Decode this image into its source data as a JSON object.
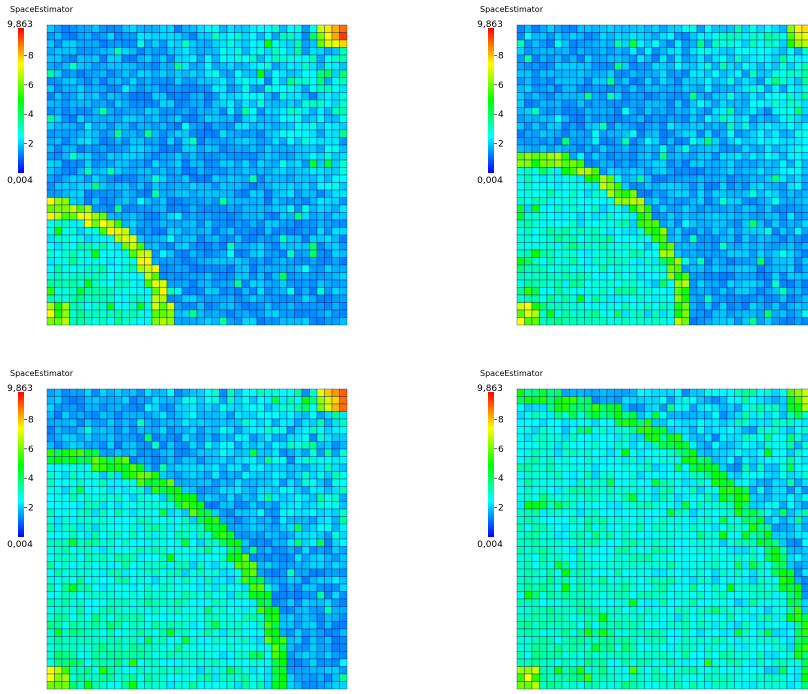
{
  "chart_data": [
    {
      "type": "heatmap",
      "title": "SpaceEstimator",
      "colorbar": {
        "min_label": "0,004",
        "max_label": "9,863",
        "ticks": [
          "2",
          "4",
          "6",
          "8"
        ],
        "min": 0.004,
        "max": 9.863
      },
      "grid_size": 40,
      "front_radius": 0.39,
      "front_value": 6.5,
      "peak": {
        "location": "top-right corner",
        "value": 9.4
      },
      "background_value": 1.2,
      "colors": [
        "#0000ff",
        "#00ffff",
        "#00ff00",
        "#ffff00",
        "#ff0000"
      ]
    },
    {
      "type": "heatmap",
      "title": "SpaceEstimator",
      "colorbar": {
        "min_label": "0,004",
        "max_label": "9,863",
        "ticks": [
          "2",
          "4",
          "6",
          "8"
        ],
        "min": 0.004,
        "max": 9.863
      },
      "grid_size": 40,
      "front_radius": 0.56,
      "front_value": 5.8,
      "peak": {
        "location": "top-right corner",
        "value": 9.0
      },
      "background_value": 1.2,
      "colors": [
        "#0000ff",
        "#00ffff",
        "#00ff00",
        "#ffff00",
        "#ff0000"
      ]
    },
    {
      "type": "heatmap",
      "title": "SpaceEstimator",
      "colorbar": {
        "min_label": "0,004",
        "max_label": "9,863",
        "ticks": [
          "2",
          "4",
          "6",
          "8"
        ],
        "min": 0.004,
        "max": 9.863
      },
      "grid_size": 40,
      "front_radius": 0.78,
      "front_value": 5.0,
      "peak": {
        "location": "top-right corner",
        "value": 9.5
      },
      "background_value": 1.2,
      "colors": [
        "#0000ff",
        "#00ffff",
        "#00ff00",
        "#ffff00",
        "#ff0000"
      ]
    },
    {
      "type": "heatmap",
      "title": "SpaceEstimator",
      "colorbar": {
        "min_label": "0,004",
        "max_label": "9,863",
        "ticks": [
          "2",
          "4",
          "6",
          "8"
        ],
        "min": 0.004,
        "max": 9.863
      },
      "grid_size": 40,
      "front_radius": 0.97,
      "front_value": 4.5,
      "peak": {
        "location": "top-right corner",
        "value": 8.0
      },
      "background_value": 1.2,
      "colors": [
        "#0000ff",
        "#00ffff",
        "#00ff00",
        "#ffff00",
        "#ff0000"
      ]
    }
  ]
}
